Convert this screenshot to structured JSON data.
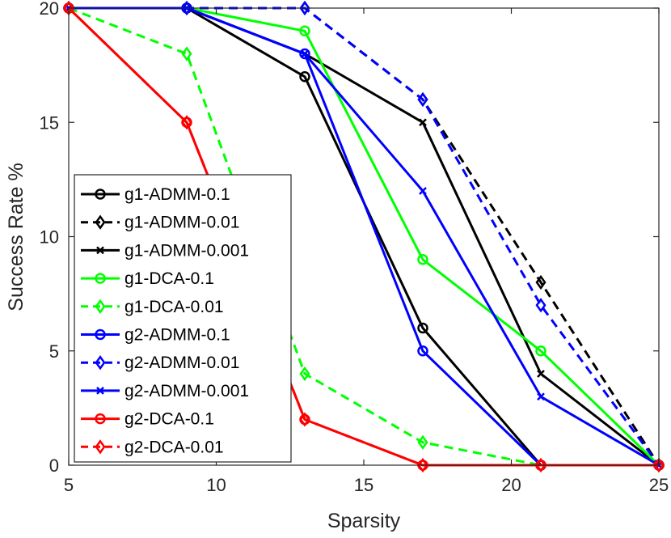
{
  "chart_data": {
    "type": "line",
    "title": "",
    "xlabel": "Sparsity",
    "ylabel": "Success Rate %",
    "xlim": [
      5,
      25
    ],
    "ylim": [
      0,
      20
    ],
    "xticks": [
      5,
      10,
      15,
      20,
      25
    ],
    "yticks": [
      0,
      5,
      10,
      15,
      20
    ],
    "x": [
      5,
      9,
      13,
      17,
      21,
      25
    ],
    "grid": false,
    "legend_position": "left-middle",
    "series": [
      {
        "name": "g1-ADMM-0.1",
        "values": [
          20,
          20,
          17,
          6,
          0,
          0
        ],
        "color": "#000000",
        "dash": "solid",
        "marker": "circle"
      },
      {
        "name": "g1-ADMM-0.01",
        "values": [
          20,
          20,
          20,
          16,
          8,
          0
        ],
        "color": "#000000",
        "dash": "dashed",
        "marker": "diamond"
      },
      {
        "name": "g1-ADMM-0.001",
        "values": [
          20,
          20,
          18,
          15,
          4,
          0
        ],
        "color": "#000000",
        "dash": "solid",
        "marker": "x"
      },
      {
        "name": "g1-DCA-0.1",
        "values": [
          20,
          20,
          19,
          9,
          5,
          0
        ],
        "color": "#00ff00",
        "dash": "solid",
        "marker": "circle"
      },
      {
        "name": "g1-DCA-0.01",
        "values": [
          20,
          18,
          4,
          1,
          0,
          0
        ],
        "color": "#00ff00",
        "dash": "dashed",
        "marker": "diamond"
      },
      {
        "name": "g2-ADMM-0.1",
        "values": [
          20,
          20,
          18,
          5,
          0,
          0
        ],
        "color": "#0000ff",
        "dash": "solid",
        "marker": "circle"
      },
      {
        "name": "g2-ADMM-0.01",
        "values": [
          20,
          20,
          20,
          16,
          7,
          0
        ],
        "color": "#0000ff",
        "dash": "dashed",
        "marker": "diamond"
      },
      {
        "name": "g2-ADMM-0.001",
        "values": [
          20,
          20,
          18,
          12,
          3,
          0
        ],
        "color": "#0000ff",
        "dash": "solid",
        "marker": "x"
      },
      {
        "name": "g2-DCA-0.1",
        "values": [
          20,
          15,
          2,
          0,
          0,
          0
        ],
        "color": "#ff0000",
        "dash": "solid",
        "marker": "circle"
      },
      {
        "name": "g2-DCA-0.01",
        "values": [
          20,
          15,
          2,
          0,
          0,
          0
        ],
        "color": "#ff0000",
        "dash": "dashed",
        "marker": "diamond"
      }
    ]
  }
}
